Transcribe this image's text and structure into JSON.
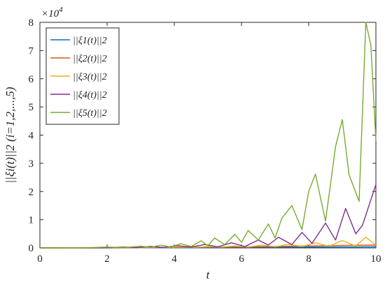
{
  "chart_data": {
    "type": "line",
    "xlabel": "t",
    "ylabel": "||ξi(t)||2 (i=1,2,...,5)",
    "exponent_label": "×10",
    "exponent_power": "4",
    "xlim": [
      0,
      10
    ],
    "ylim": [
      0,
      8
    ],
    "x_ticks": [
      "0",
      "2",
      "4",
      "6",
      "8",
      "10"
    ],
    "y_ticks": [
      "0",
      "1",
      "2",
      "3",
      "4",
      "5",
      "6",
      "7",
      "8"
    ],
    "x_tick_values": [
      0,
      2,
      4,
      6,
      8,
      10
    ],
    "y_tick_values": [
      0,
      1,
      2,
      3,
      4,
      5,
      6,
      7,
      8
    ],
    "legend_position": "top-left",
    "grid": false,
    "series": [
      {
        "name": "||ξ1(t)||2",
        "color": "#0072BD",
        "x": [
          0,
          1,
          2,
          3,
          4,
          5,
          6,
          7,
          8,
          9,
          10
        ],
        "y": [
          0,
          0,
          0,
          0.005,
          0.01,
          0.015,
          0.02,
          0.025,
          0.03,
          0.035,
          0.04
        ]
      },
      {
        "name": "||ξ2(t)||2",
        "color": "#D95319",
        "x": [
          0,
          1,
          2,
          3,
          4,
          5,
          6,
          7,
          8,
          9,
          10
        ],
        "y": [
          0,
          0,
          0,
          0.01,
          0.02,
          0.03,
          0.04,
          0.05,
          0.07,
          0.09,
          0.1
        ]
      },
      {
        "name": "||ξ3(t)||2",
        "color": "#EDB120",
        "x": [
          0,
          2.2,
          2.6,
          3.0,
          3.4,
          3.8,
          4.2,
          4.6,
          5.0,
          5.4,
          5.8,
          6.2,
          6.6,
          7.0,
          7.4,
          7.8,
          8.2,
          8.6,
          9.0,
          9.4,
          9.7,
          10
        ],
        "y": [
          0,
          0.01,
          0.02,
          0.01,
          0.03,
          0.02,
          0.04,
          0.02,
          0.05,
          0.03,
          0.07,
          0.03,
          0.1,
          0.04,
          0.13,
          0.05,
          0.18,
          0.06,
          0.26,
          0.07,
          0.38,
          0.1
        ]
      },
      {
        "name": "||ξ4(t)||2",
        "color": "#7E2F8E",
        "x": [
          0,
          2.0,
          2.5,
          2.9,
          3.3,
          3.7,
          4.1,
          4.5,
          4.9,
          5.3,
          5.7,
          6.1,
          6.5,
          6.8,
          7.1,
          7.5,
          7.8,
          8.1,
          8.5,
          8.8,
          9.1,
          9.4,
          9.6,
          10
        ],
        "y": [
          0,
          0.01,
          0.03,
          0.01,
          0.05,
          0.02,
          0.08,
          0.03,
          0.12,
          0.04,
          0.18,
          0.05,
          0.28,
          0.1,
          0.38,
          0.12,
          0.55,
          0.16,
          0.88,
          0.28,
          1.4,
          0.5,
          0.8,
          2.25
        ]
      },
      {
        "name": "||ξ5(t)||2",
        "color": "#77AC30",
        "x": [
          0,
          1.5,
          2.0,
          2.5,
          3.0,
          3.3,
          3.6,
          3.9,
          4.2,
          4.5,
          4.8,
          5.0,
          5.2,
          5.5,
          5.8,
          6.0,
          6.2,
          6.5,
          6.8,
          7.0,
          7.2,
          7.5,
          7.8,
          8.0,
          8.2,
          8.5,
          8.8,
          9.0,
          9.2,
          9.5,
          9.7,
          9.85,
          10
        ],
        "y": [
          0,
          0.01,
          0.03,
          0.01,
          0.06,
          0.02,
          0.1,
          0.03,
          0.15,
          0.05,
          0.25,
          0.08,
          0.35,
          0.12,
          0.48,
          0.2,
          0.62,
          0.28,
          0.85,
          0.35,
          1.05,
          1.5,
          0.65,
          2.0,
          2.62,
          0.95,
          3.6,
          4.55,
          2.6,
          1.65,
          8.0,
          7.2,
          3.8
        ]
      }
    ]
  }
}
